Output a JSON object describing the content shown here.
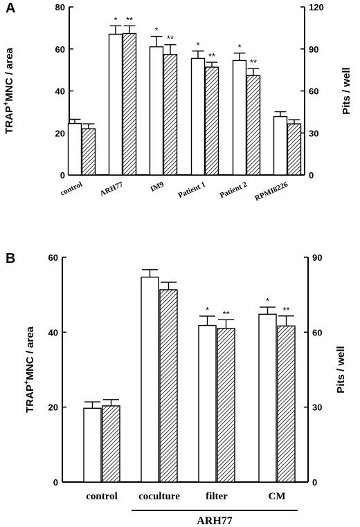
{
  "chart_data": [
    {
      "panel": "A",
      "type": "bar",
      "categories": [
        "control",
        "ARH77",
        "IM9",
        "Patient 1",
        "Patient 2",
        "RPMI8226"
      ],
      "ylabel": "TRAP⁺MNC / area",
      "ylabel_base": "TRAP",
      "ylabel_sup": "+",
      "ylabel_rest": "MNC / area",
      "y2label": "Pits / well",
      "ylim": [
        0,
        80
      ],
      "y2lim": [
        0,
        120
      ],
      "yticks": [
        0,
        20,
        40,
        60,
        80
      ],
      "y2ticks": [
        0,
        30,
        60,
        90,
        120
      ],
      "grid": false,
      "series": [
        {
          "style": "open",
          "axis": "left",
          "values": [
            24.5,
            67,
            61,
            55.5,
            54.5,
            27.8
          ],
          "errors": [
            2,
            4,
            5,
            3.5,
            3.5,
            2.3
          ]
        },
        {
          "style": "hatched",
          "axis": "right",
          "values": [
            33,
            101,
            86,
            77,
            71,
            36.5
          ],
          "errors": [
            3.5,
            5.5,
            7,
            3.5,
            5,
            3
          ]
        }
      ],
      "annotations": [
        {
          "category": 1,
          "series": 0,
          "text": "*"
        },
        {
          "category": 1,
          "series": 1,
          "text": "**"
        },
        {
          "category": 2,
          "series": 0,
          "text": "*"
        },
        {
          "category": 2,
          "series": 1,
          "text": "**"
        },
        {
          "category": 3,
          "series": 0,
          "text": "*"
        },
        {
          "category": 3,
          "series": 1,
          "text": "**"
        },
        {
          "category": 4,
          "series": 0,
          "text": "*"
        },
        {
          "category": 4,
          "series": 1,
          "text": "**"
        }
      ]
    },
    {
      "panel": "B",
      "type": "bar",
      "categories": [
        "control",
        "coculture",
        "filter",
        "CM"
      ],
      "group_label": "ARH77",
      "ylabel": "TRAP⁺MNC / area",
      "ylabel_base": "TRAP",
      "ylabel_sup": "+",
      "ylabel_rest": "MNC / area",
      "y2label": "Pits / well",
      "ylim": [
        0,
        60
      ],
      "y2lim": [
        0,
        90
      ],
      "yticks": [
        0,
        20,
        40,
        60
      ],
      "y2ticks": [
        0,
        30,
        60,
        90
      ],
      "grid": false,
      "series": [
        {
          "style": "open",
          "axis": "left",
          "values": [
            19.7,
            54.7,
            41.8,
            44.8
          ],
          "errors": [
            1.7,
            2,
            2.5,
            1.9
          ]
        },
        {
          "style": "hatched",
          "axis": "right",
          "values": [
            30.5,
            77,
            61.5,
            62.5
          ],
          "errors": [
            2.5,
            3,
            3.5,
            4
          ]
        }
      ],
      "annotations": [
        {
          "category": 2,
          "series": 0,
          "text": "*"
        },
        {
          "category": 2,
          "series": 1,
          "text": "**"
        },
        {
          "category": 3,
          "series": 0,
          "text": "*"
        },
        {
          "category": 3,
          "series": 1,
          "text": "**"
        }
      ]
    }
  ]
}
